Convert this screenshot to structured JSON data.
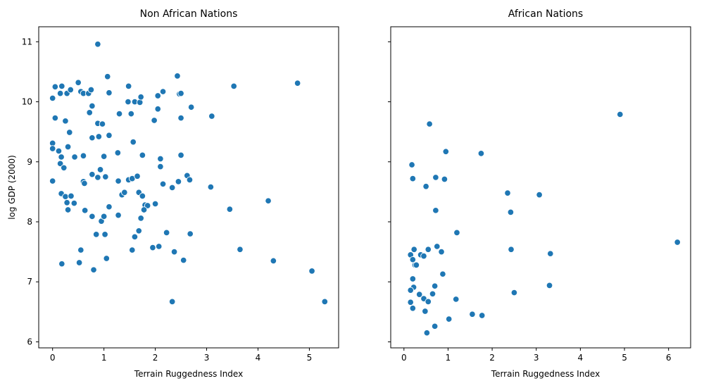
{
  "chart_data": [
    {
      "type": "scatter",
      "title": "Non African Nations",
      "xlabel": "Terrain Ruggedness Index",
      "ylabel": "log GDP (2000)",
      "xlim": [
        -0.27,
        5.57
      ],
      "ylim": [
        5.9,
        11.25
      ],
      "xticks": [
        "0",
        "1",
        "2",
        "3",
        "4",
        "5"
      ],
      "yticks": [
        "6",
        "7",
        "8",
        "9",
        "10",
        "11"
      ],
      "color": "#1f77b4",
      "points": [
        [
          0.0,
          10.06
        ],
        [
          0.05,
          10.25
        ],
        [
          0.15,
          10.14
        ],
        [
          0.18,
          10.26
        ],
        [
          0.28,
          10.14
        ],
        [
          0.35,
          10.2
        ],
        [
          0.5,
          10.32
        ],
        [
          0.55,
          10.17
        ],
        [
          0.6,
          10.14
        ],
        [
          0.7,
          10.14
        ],
        [
          0.75,
          10.2
        ],
        [
          0.88,
          10.96
        ],
        [
          1.07,
          10.42
        ],
        [
          1.1,
          10.15
        ],
        [
          1.48,
          10.26
        ],
        [
          1.47,
          10.0
        ],
        [
          1.6,
          10.0
        ],
        [
          1.7,
          9.99
        ],
        [
          1.72,
          10.08
        ],
        [
          2.05,
          10.1
        ],
        [
          2.15,
          10.17
        ],
        [
          2.43,
          10.43
        ],
        [
          2.47,
          10.13
        ],
        [
          2.5,
          10.14
        ],
        [
          3.53,
          10.26
        ],
        [
          4.77,
          10.31
        ],
        [
          0.05,
          9.73
        ],
        [
          0.25,
          9.68
        ],
        [
          0.72,
          9.82
        ],
        [
          0.77,
          9.93
        ],
        [
          0.88,
          9.64
        ],
        [
          0.97,
          9.63
        ],
        [
          1.3,
          9.8
        ],
        [
          1.53,
          9.8
        ],
        [
          2.05,
          9.88
        ],
        [
          2.5,
          9.73
        ],
        [
          2.7,
          9.91
        ],
        [
          3.1,
          9.76
        ],
        [
          0.0,
          9.31
        ],
        [
          0.0,
          9.22
        ],
        [
          0.12,
          9.18
        ],
        [
          0.15,
          8.97
        ],
        [
          0.17,
          9.08
        ],
        [
          0.22,
          8.9
        ],
        [
          0.3,
          9.25
        ],
        [
          0.33,
          9.49
        ],
        [
          0.43,
          9.08
        ],
        [
          0.6,
          9.1
        ],
        [
          0.77,
          9.4
        ],
        [
          0.9,
          9.42
        ],
        [
          1.0,
          9.09
        ],
        [
          1.1,
          9.44
        ],
        [
          1.27,
          9.15
        ],
        [
          1.57,
          9.33
        ],
        [
          1.75,
          9.11
        ],
        [
          1.98,
          9.69
        ],
        [
          2.1,
          9.05
        ],
        [
          2.1,
          8.92
        ],
        [
          2.5,
          9.11
        ],
        [
          0.0,
          8.68
        ],
        [
          0.17,
          8.47
        ],
        [
          0.25,
          8.42
        ],
        [
          0.28,
          8.32
        ],
        [
          0.36,
          8.43
        ],
        [
          0.42,
          8.31
        ],
        [
          0.6,
          8.67
        ],
        [
          0.62,
          8.64
        ],
        [
          0.77,
          8.79
        ],
        [
          0.88,
          8.74
        ],
        [
          0.93,
          8.87
        ],
        [
          1.03,
          8.75
        ],
        [
          1.28,
          8.68
        ],
        [
          1.35,
          8.45
        ],
        [
          1.4,
          8.49
        ],
        [
          1.48,
          8.7
        ],
        [
          1.55,
          8.72
        ],
        [
          1.65,
          8.76
        ],
        [
          1.68,
          8.49
        ],
        [
          1.75,
          8.43
        ],
        [
          1.8,
          8.28
        ],
        [
          1.85,
          8.27
        ],
        [
          2.0,
          8.3
        ],
        [
          2.15,
          8.63
        ],
        [
          2.33,
          8.57
        ],
        [
          2.45,
          8.67
        ],
        [
          2.62,
          8.77
        ],
        [
          2.67,
          8.7
        ],
        [
          3.08,
          8.58
        ],
        [
          0.3,
          8.2
        ],
        [
          0.63,
          8.19
        ],
        [
          0.77,
          8.09
        ],
        [
          0.95,
          8.01
        ],
        [
          1.0,
          8.09
        ],
        [
          1.1,
          8.25
        ],
        [
          1.28,
          8.11
        ],
        [
          1.72,
          8.06
        ],
        [
          1.78,
          8.2
        ],
        [
          3.45,
          8.21
        ],
        [
          4.2,
          8.35
        ],
        [
          0.85,
          7.79
        ],
        [
          1.02,
          7.79
        ],
        [
          1.6,
          7.75
        ],
        [
          1.68,
          7.85
        ],
        [
          2.22,
          7.82
        ],
        [
          2.68,
          7.8
        ],
        [
          0.55,
          7.53
        ],
        [
          1.55,
          7.53
        ],
        [
          1.95,
          7.57
        ],
        [
          2.07,
          7.59
        ],
        [
          2.37,
          7.5
        ],
        [
          3.65,
          7.54
        ],
        [
          0.18,
          7.3
        ],
        [
          0.52,
          7.32
        ],
        [
          0.8,
          7.2
        ],
        [
          1.05,
          7.39
        ],
        [
          2.55,
          7.36
        ],
        [
          4.3,
          7.35
        ],
        [
          5.05,
          7.18
        ],
        [
          2.33,
          6.67
        ],
        [
          5.3,
          6.67
        ]
      ]
    },
    {
      "type": "scatter",
      "title": "African Nations",
      "xlabel": "Terrain Ruggedness Index",
      "ylabel": "",
      "xlim": [
        -0.3,
        6.5
      ],
      "ylim": [
        5.9,
        11.25
      ],
      "xticks": [
        "0",
        "1",
        "2",
        "3",
        "4",
        "5",
        "6"
      ],
      "yticks": [
        "6",
        "7",
        "8",
        "9",
        "10",
        "11"
      ],
      "color": "#1f77b4",
      "points": [
        [
          0.58,
          9.63
        ],
        [
          4.9,
          9.79
        ],
        [
          0.95,
          9.17
        ],
        [
          1.75,
          9.14
        ],
        [
          0.18,
          8.95
        ],
        [
          0.2,
          8.72
        ],
        [
          0.72,
          8.74
        ],
        [
          0.92,
          8.71
        ],
        [
          0.5,
          8.59
        ],
        [
          2.35,
          8.48
        ],
        [
          3.07,
          8.45
        ],
        [
          2.42,
          8.16
        ],
        [
          0.72,
          8.19
        ],
        [
          1.2,
          7.82
        ],
        [
          0.15,
          7.45
        ],
        [
          0.23,
          7.54
        ],
        [
          0.38,
          7.45
        ],
        [
          0.45,
          7.43
        ],
        [
          0.55,
          7.54
        ],
        [
          0.75,
          7.59
        ],
        [
          0.85,
          7.5
        ],
        [
          2.43,
          7.54
        ],
        [
          3.32,
          7.47
        ],
        [
          6.2,
          7.66
        ],
        [
          0.2,
          7.37
        ],
        [
          0.25,
          7.28
        ],
        [
          0.28,
          7.28
        ],
        [
          0.2,
          7.05
        ],
        [
          0.22,
          6.91
        ],
        [
          0.15,
          6.86
        ],
        [
          0.35,
          6.79
        ],
        [
          0.45,
          6.72
        ],
        [
          0.55,
          6.67
        ],
        [
          0.65,
          6.8
        ],
        [
          0.7,
          6.93
        ],
        [
          0.88,
          7.13
        ],
        [
          1.18,
          6.71
        ],
        [
          2.5,
          6.82
        ],
        [
          3.3,
          6.94
        ],
        [
          0.15,
          6.66
        ],
        [
          0.2,
          6.56
        ],
        [
          0.48,
          6.51
        ],
        [
          0.52,
          6.15
        ],
        [
          0.7,
          6.26
        ],
        [
          1.02,
          6.38
        ],
        [
          1.55,
          6.46
        ],
        [
          1.77,
          6.44
        ]
      ]
    }
  ]
}
